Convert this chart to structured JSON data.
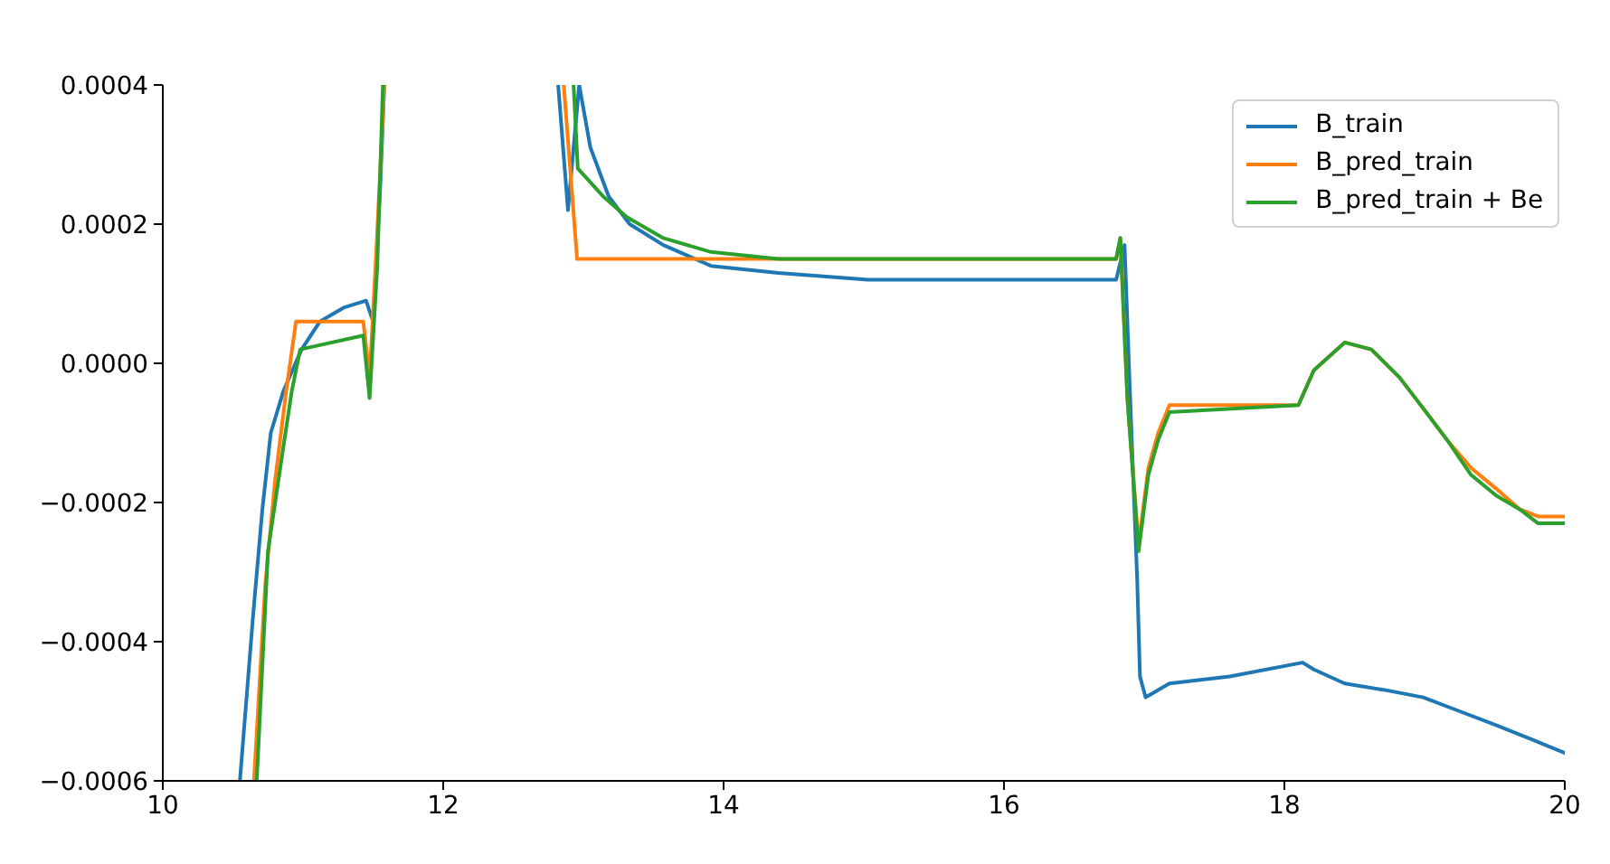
{
  "chart_data": {
    "type": "line",
    "xlim": [
      10,
      20
    ],
    "xticks": [
      10,
      12,
      14,
      16,
      18,
      20
    ],
    "ylim": [
      -0.0006,
      0.0004
    ],
    "yticks": [
      {
        "value": -0.0006,
        "label": "−0.0006"
      },
      {
        "value": -0.0004,
        "label": "−0.0004"
      },
      {
        "value": -0.0002,
        "label": "−0.0002"
      },
      {
        "value": 0,
        "label": "0.0000"
      },
      {
        "value": 0.0002,
        "label": "0.0002"
      },
      {
        "value": 0.0004,
        "label": "0.0004"
      }
    ],
    "legend": "top right",
    "series": [
      {
        "name": "B_train",
        "color": "#1f77b4",
        "x": [
          10.55,
          10.645,
          10.71,
          10.77,
          10.86,
          10.99,
          11.12,
          11.29,
          11.45,
          11.5,
          11.55,
          11.58,
          12.2,
          12.82,
          12.89,
          12.97,
          13.05,
          13.18,
          13.33,
          13.57,
          13.91,
          14.39,
          15.03,
          15.5,
          16.0,
          16.32,
          16.8,
          16.86,
          16.9,
          16.95,
          16.97,
          17.01,
          17.18,
          17.61,
          18.13,
          18.21,
          18.43,
          18.73,
          18.99,
          19.25,
          19.51,
          19.76,
          20.0
        ],
        "values": [
          -0.0006,
          -0.00036,
          -0.00021,
          -0.0001,
          -4e-05,
          2e-05,
          6e-05,
          8e-05,
          9e-05,
          6e-05,
          0.00025,
          0.0004,
          null,
          0.0004,
          0.00022,
          0.0004,
          0.00031,
          0.00024,
          0.0002,
          0.00017,
          0.00014,
          0.00013,
          0.00012,
          0.00012,
          0.00012,
          0.00012,
          0.00012,
          0.00017,
          -5e-05,
          -0.00031,
          -0.00045,
          -0.00048,
          -0.00046,
          -0.00045,
          -0.00043,
          -0.00044,
          -0.00046,
          -0.00047,
          -0.00048,
          -0.0005,
          -0.00052,
          -0.00054,
          -0.00056
        ]
      },
      {
        "name": "B_pred_train",
        "color": "#ff7f0e",
        "x": [
          10.65,
          10.73,
          10.8,
          10.88,
          10.95,
          11.43,
          11.475,
          11.52,
          11.58,
          12.2,
          12.86,
          12.955,
          16.8,
          16.83,
          16.88,
          16.96,
          17.03,
          17.1,
          17.18,
          18.1,
          18.21,
          18.43,
          18.62,
          18.82,
          19.01,
          19.16,
          19.33,
          19.51,
          19.68,
          19.81,
          20.0
        ],
        "values": [
          -0.0006,
          -0.00032,
          -0.00017,
          -4e-05,
          6e-05,
          6e-05,
          -2e-05,
          0.00015,
          0.0004,
          null,
          0.0004,
          0.00015,
          0.00015,
          0.00018,
          -5e-05,
          -0.00026,
          -0.00015,
          -0.0001,
          -6e-05,
          -6e-05,
          -1e-05,
          3e-05,
          2e-05,
          -2e-05,
          -7e-05,
          -0.00011,
          -0.00015,
          -0.00018,
          -0.00021,
          -0.00022,
          -0.00022
        ]
      },
      {
        "name": "B_pred_train + Be",
        "color": "#2ca02c",
        "x": [
          10.67,
          10.75,
          10.86,
          10.92,
          10.98,
          11.43,
          11.475,
          11.53,
          11.57,
          12.2,
          12.93,
          12.96,
          13.14,
          13.31,
          13.57,
          13.91,
          14.39,
          15.03,
          16.8,
          16.83,
          16.88,
          16.96,
          17.03,
          17.1,
          17.18,
          18.1,
          18.21,
          18.43,
          18.62,
          18.82,
          19.01,
          19.16,
          19.33,
          19.51,
          19.68,
          19.81,
          20.0
        ],
        "values": [
          -0.0006,
          -0.00027,
          -0.00012,
          -4e-05,
          2e-05,
          4e-05,
          -5e-05,
          0.00014,
          0.0004,
          null,
          0.0004,
          0.00028,
          0.00024,
          0.00021,
          0.00018,
          0.00016,
          0.00015,
          0.00015,
          0.00015,
          0.00018,
          -5e-05,
          -0.00027,
          -0.00016,
          -0.00011,
          -7e-05,
          -6e-05,
          -1e-05,
          3e-05,
          2e-05,
          -2e-05,
          -7e-05,
          -0.00011,
          -0.00016,
          -0.00019,
          -0.00021,
          -0.00023,
          -0.00023
        ]
      }
    ]
  }
}
